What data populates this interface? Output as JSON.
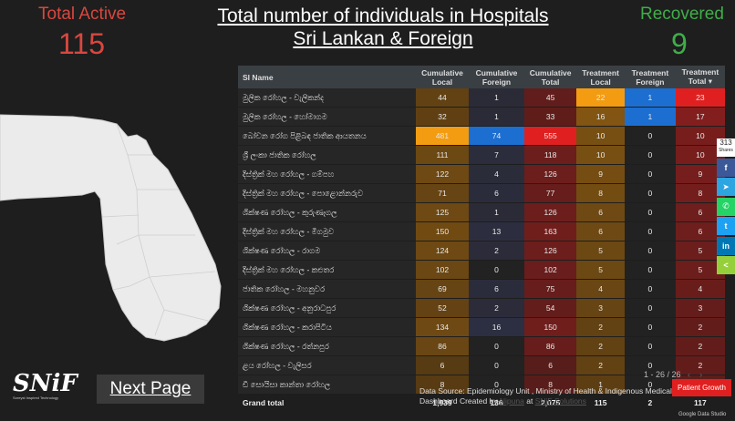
{
  "stats": {
    "total_active_label": "Total Active",
    "total_active_value": "115",
    "recovered_label": "Recovered",
    "recovered_value": "9"
  },
  "title": {
    "line1": "Total number of individuals in Hospitals",
    "line2": "Sri Lankan & Foreign"
  },
  "table": {
    "headers": [
      "SI Name",
      "Cumulative Local",
      "Cumulative Foreign",
      "Cumulative Total",
      "Treatment Local",
      "Treatment Foreign",
      "Treatment Total ▾"
    ],
    "rows": [
      {
        "name": "මුලික රෝහල - වැලිකන්ද",
        "vals": [
          "44",
          "1",
          "45",
          "22",
          "1",
          "23"
        ]
      },
      {
        "name": "මුලික රෝහල - හෝමාගම",
        "vals": [
          "32",
          "1",
          "33",
          "16",
          "1",
          "17"
        ]
      },
      {
        "name": "බෝවන රෝග පිළිබඳ ජාතික ආයතනය",
        "vals": [
          "481",
          "74",
          "555",
          "10",
          "0",
          "10"
        ]
      },
      {
        "name": "ශ්‍රී ලංකා ජාතික රෝහල",
        "vals": [
          "111",
          "7",
          "118",
          "10",
          "0",
          "10"
        ]
      },
      {
        "name": "දිස්ත්‍රික් මහ රෝහල - ගම්පහ",
        "vals": [
          "122",
          "4",
          "126",
          "9",
          "0",
          "9"
        ]
      },
      {
        "name": "දිස්ත්‍රික් මහ රෝහල - පොළොන්නරුව",
        "vals": [
          "71",
          "6",
          "77",
          "8",
          "0",
          "8"
        ]
      },
      {
        "name": "ශික්ෂණ රෝහල - කුරුණෑගල",
        "vals": [
          "125",
          "1",
          "126",
          "6",
          "0",
          "6"
        ]
      },
      {
        "name": "දිස්ත්‍රික් මහ රෝහල - මීගමුව",
        "vals": [
          "150",
          "13",
          "163",
          "6",
          "0",
          "6"
        ]
      },
      {
        "name": "ශික්ෂණ රෝහල - රාගම",
        "vals": [
          "124",
          "2",
          "126",
          "5",
          "0",
          "5"
        ]
      },
      {
        "name": "දිස්ත්‍රික් මහ රෝහල - කළුතර",
        "vals": [
          "102",
          "0",
          "102",
          "5",
          "0",
          "5"
        ]
      },
      {
        "name": "ජාතික රෝහල - මහනුවර",
        "vals": [
          "69",
          "6",
          "75",
          "4",
          "0",
          "4"
        ]
      },
      {
        "name": "ශික්ෂණ රෝහල - අනුරාධපුර",
        "vals": [
          "52",
          "2",
          "54",
          "3",
          "0",
          "3"
        ]
      },
      {
        "name": "ශික්ෂණ රෝහල - කරාපිටිය",
        "vals": [
          "134",
          "16",
          "150",
          "2",
          "0",
          "2"
        ]
      },
      {
        "name": "ශික්ෂණ රෝහල - රත්නපුර",
        "vals": [
          "86",
          "0",
          "86",
          "2",
          "0",
          "2"
        ]
      },
      {
        "name": "ළය රෝහල - වැලිසර",
        "vals": [
          "6",
          "0",
          "6",
          "2",
          "0",
          "2"
        ]
      },
      {
        "name": "ඩී සොයිසා කාන්තා රෝහල",
        "vals": [
          "8",
          "0",
          "8",
          "1",
          "0",
          "1"
        ]
      }
    ],
    "total_row": {
      "name": "Grand total",
      "vals": [
        "1,939",
        "136",
        "2,075",
        "115",
        "2",
        "117"
      ]
    }
  },
  "pagination": {
    "text": "1 - 26 / 26",
    "prev_icon": "‹",
    "next_icon": "›"
  },
  "logo": {
    "text": "SNiF",
    "tagline": "Soreyst Inspired Technology"
  },
  "next_page_label": "Next Page",
  "source": {
    "line1": "Data Source: Epidemiology Unit , Ministry of Health & Indigenous Medical",
    "line2_prefix": "Dashboard Created by",
    "line2_link1": "Nipuna",
    "line2_mid": "at",
    "line2_link2": "SNiF Solutions"
  },
  "patient_growth_label": "Patient Growth",
  "footer_brand": "Google Data Studio",
  "share": {
    "count": "313",
    "count_label": "Shares",
    "buttons": [
      {
        "icon": "facebook-icon",
        "glyph": "f",
        "color": "#3b5998"
      },
      {
        "icon": "telegram-icon",
        "glyph": "➤",
        "color": "#2ca5e0"
      },
      {
        "icon": "whatsapp-icon",
        "glyph": "✆",
        "color": "#25d366"
      },
      {
        "icon": "twitter-icon",
        "glyph": "t",
        "color": "#1da1f2"
      },
      {
        "icon": "linkedin-icon",
        "glyph": "in",
        "color": "#0077b5"
      },
      {
        "icon": "share-icon",
        "glyph": "<",
        "color": "#95d03a"
      }
    ]
  },
  "colors": {
    "active": "#d9473f",
    "recovered": "#3fae49",
    "high_local": "#f39c12",
    "high_foreign": "#1c6fd1",
    "high_total": "#e02020"
  }
}
